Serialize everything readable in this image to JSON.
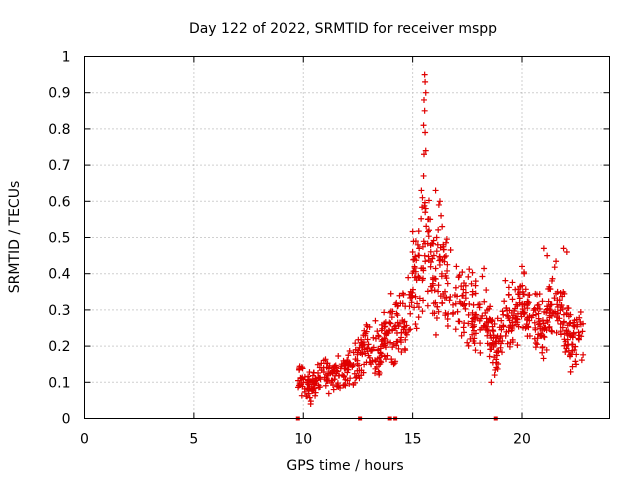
{
  "chart_data": {
    "type": "scatter",
    "title": "Day 122 of 2022, SRMTID for receiver mspp",
    "xlabel": "GPS time / hours",
    "ylabel": "SRMTID / TECUs",
    "xlim": [
      0,
      24
    ],
    "ylim": [
      0,
      1
    ],
    "xticks": [
      0,
      5,
      10,
      15,
      20
    ],
    "xtick_labels": [
      "0",
      "5",
      "10",
      "15",
      "20"
    ],
    "yticks": [
      0,
      0.1,
      0.2,
      0.3,
      0.4,
      0.5,
      0.6,
      0.7,
      0.8,
      0.9,
      1
    ],
    "ytick_labels": [
      "0",
      "0.1",
      "0.2",
      "0.3",
      "0.4",
      "0.5",
      "0.6",
      "0.7",
      "0.8",
      "0.9",
      "1"
    ],
    "grid": true,
    "marker": "plus",
    "color": "#e00000",
    "trend": [
      [
        9.75,
        0.14
      ],
      [
        10.0,
        0.11
      ],
      [
        10.3,
        0.08
      ],
      [
        10.6,
        0.1
      ],
      [
        11.0,
        0.12
      ],
      [
        11.5,
        0.12
      ],
      [
        12.0,
        0.13
      ],
      [
        12.5,
        0.17
      ],
      [
        13.0,
        0.21
      ],
      [
        13.5,
        0.16
      ],
      [
        13.9,
        0.25
      ],
      [
        14.3,
        0.24
      ],
      [
        14.7,
        0.27
      ],
      [
        15.0,
        0.4
      ],
      [
        15.3,
        0.38
      ],
      [
        15.6,
        0.5
      ],
      [
        16.0,
        0.36
      ],
      [
        16.3,
        0.42
      ],
      [
        16.7,
        0.36
      ],
      [
        17.0,
        0.3
      ],
      [
        17.5,
        0.34
      ],
      [
        17.9,
        0.28
      ],
      [
        18.3,
        0.3
      ],
      [
        18.8,
        0.18
      ],
      [
        19.2,
        0.28
      ],
      [
        19.6,
        0.28
      ],
      [
        20.0,
        0.32
      ],
      [
        20.5,
        0.26
      ],
      [
        21.0,
        0.24
      ],
      [
        21.5,
        0.32
      ],
      [
        22.0,
        0.24
      ],
      [
        22.4,
        0.2
      ],
      [
        22.8,
        0.25
      ]
    ],
    "points": [
      [
        15.55,
        0.95
      ],
      [
        15.57,
        0.93
      ],
      [
        15.6,
        0.9
      ],
      [
        15.52,
        0.88
      ],
      [
        15.55,
        0.85
      ],
      [
        15.5,
        0.81
      ],
      [
        15.57,
        0.79
      ],
      [
        15.6,
        0.74
      ],
      [
        15.52,
        0.73
      ],
      [
        15.5,
        0.67
      ],
      [
        15.4,
        0.63
      ],
      [
        15.45,
        0.61
      ],
      [
        15.6,
        0.58
      ],
      [
        15.7,
        0.55
      ],
      [
        16.2,
        0.59
      ],
      [
        16.25,
        0.6
      ],
      [
        16.3,
        0.56
      ],
      [
        16.35,
        0.53
      ],
      [
        16.1,
        0.5
      ],
      [
        16.4,
        0.48
      ],
      [
        15.15,
        0.49
      ],
      [
        15.0,
        0.46
      ],
      [
        15.3,
        0.47
      ],
      [
        21.9,
        0.47
      ],
      [
        22.05,
        0.46
      ],
      [
        21.0,
        0.47
      ],
      [
        21.15,
        0.45
      ],
      [
        20.0,
        0.42
      ],
      [
        20.1,
        0.4
      ],
      [
        15.75,
        0.52
      ],
      [
        15.8,
        0.55
      ],
      [
        16.05,
        0.63
      ],
      [
        17.0,
        0.42
      ],
      [
        17.1,
        0.39
      ],
      [
        14.05,
        0.28
      ],
      [
        13.3,
        0.27
      ],
      [
        12.9,
        0.24
      ],
      [
        18.6,
        0.1
      ],
      [
        18.75,
        0.12
      ]
    ],
    "zero_markers": [
      9.75,
      12.6,
      13.95,
      14.2,
      18.8
    ]
  }
}
